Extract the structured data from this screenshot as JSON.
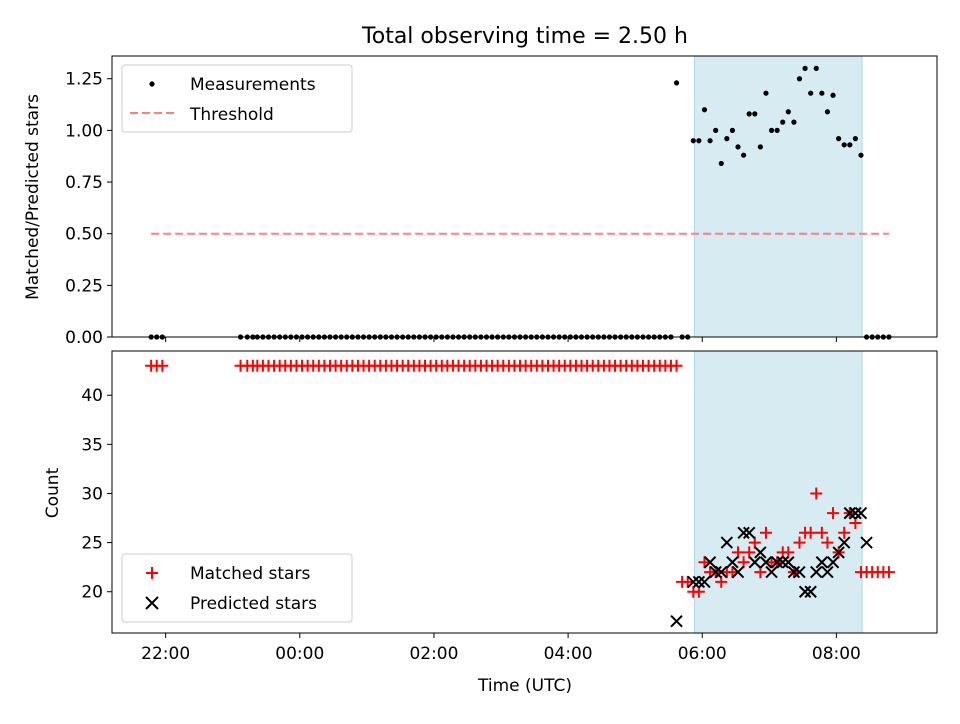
{
  "chart_data": [
    {
      "type": "scatter",
      "panel": "top",
      "title": "Total observing time = 2.50 h",
      "ylabel": "Matched/Predicted stars",
      "ylim": [
        0,
        1.36
      ],
      "yticks": [
        "0.00",
        "0.25",
        "0.50",
        "0.75",
        "1.00",
        "1.25"
      ],
      "xlim": [
        "21:12",
        "09:30"
      ],
      "xticks": [
        "22:00",
        "00:00",
        "02:00",
        "04:00",
        "06:00",
        "08:00"
      ],
      "legend": "top-left",
      "shaded_interval": [
        "05:53",
        "08:23"
      ],
      "colors": {
        "measurements": "#000000",
        "threshold": "#ff7f7f",
        "shade": "#add8e6"
      },
      "series": [
        {
          "name": "Measurements",
          "x": [
            "21:47",
            "21:52",
            "21:57",
            "23:07",
            "23:13",
            "23:18",
            "23:22",
            "23:27",
            "23:32",
            "23:37",
            "23:42",
            "23:47",
            "23:52",
            "23:57",
            "00:02",
            "00:07",
            "00:12",
            "00:17",
            "00:22",
            "00:27",
            "00:32",
            "00:37",
            "00:42",
            "00:47",
            "00:52",
            "00:57",
            "01:02",
            "01:07",
            "01:12",
            "01:17",
            "01:22",
            "01:27",
            "01:32",
            "01:37",
            "01:42",
            "01:47",
            "01:52",
            "01:57",
            "02:02",
            "02:07",
            "02:12",
            "02:17",
            "02:22",
            "02:27",
            "02:32",
            "02:37",
            "02:42",
            "02:47",
            "02:52",
            "02:57",
            "03:02",
            "03:07",
            "03:12",
            "03:17",
            "03:22",
            "03:27",
            "03:32",
            "03:37",
            "03:42",
            "03:47",
            "03:52",
            "03:57",
            "04:02",
            "04:07",
            "04:12",
            "04:17",
            "04:22",
            "04:27",
            "04:32",
            "04:37",
            "04:42",
            "04:47",
            "04:52",
            "04:57",
            "05:02",
            "05:07",
            "05:12",
            "05:17",
            "05:22",
            "05:27",
            "05:32",
            "05:37",
            "05:42",
            "05:47",
            "05:52",
            "05:57",
            "06:02",
            "06:07",
            "06:12",
            "06:17",
            "06:22",
            "06:27",
            "06:32",
            "06:37",
            "06:42",
            "06:47",
            "06:52",
            "06:57",
            "07:02",
            "07:07",
            "07:12",
            "07:17",
            "07:22",
            "07:27",
            "07:32",
            "07:37",
            "07:42",
            "07:47",
            "07:52",
            "07:57",
            "08:02",
            "08:07",
            "08:12",
            "08:17",
            "08:22",
            "08:27",
            "08:32",
            "08:37",
            "08:42",
            "08:47"
          ],
          "y": [
            0,
            0,
            0,
            0,
            0,
            0,
            0,
            0,
            0,
            0,
            0,
            0,
            0,
            0,
            0,
            0,
            0,
            0,
            0,
            0,
            0,
            0,
            0,
            0,
            0,
            0,
            0,
            0,
            0,
            0,
            0,
            0,
            0,
            0,
            0,
            0,
            0,
            0,
            0,
            0,
            0,
            0,
            0,
            0,
            0,
            0,
            0,
            0,
            0,
            0,
            0,
            0,
            0,
            0,
            0,
            0,
            0,
            0,
            0,
            0,
            0,
            0,
            0,
            0,
            0,
            0,
            0,
            0,
            0,
            0,
            0,
            0,
            0,
            0,
            0,
            0,
            0,
            0,
            0,
            0,
            0,
            1.23,
            0,
            0,
            0.95,
            0.95,
            1.1,
            0.95,
            1.0,
            0.84,
            0.96,
            1.0,
            0.92,
            0.88,
            1.08,
            1.08,
            0.92,
            1.18,
            1.0,
            1.0,
            1.04,
            1.09,
            1.04,
            1.25,
            1.3,
            1.18,
            1.3,
            1.18,
            1.09,
            1.17,
            0.96,
            0.93,
            0.93,
            0.96,
            0.88,
            0,
            0,
            0,
            0,
            0
          ]
        },
        {
          "name": "Threshold",
          "x": [
            "21:47",
            "08:47"
          ],
          "y": [
            0.5,
            0.5
          ]
        }
      ]
    },
    {
      "type": "scatter",
      "panel": "bottom",
      "xlabel": "Time (UTC)",
      "ylabel": "Count",
      "ylim": [
        15.8,
        44.5
      ],
      "yticks": [
        "20",
        "25",
        "30",
        "35",
        "40"
      ],
      "xlim": [
        "21:12",
        "09:30"
      ],
      "xticks": [
        "22:00",
        "00:00",
        "02:00",
        "04:00",
        "06:00",
        "08:00"
      ],
      "legend": "bottom-left",
      "shaded_interval": [
        "05:53",
        "08:23"
      ],
      "colors": {
        "matched": "#ff0000",
        "predicted": "#000000"
      },
      "series": [
        {
          "name": "Matched stars",
          "x": [
            "21:47",
            "21:52",
            "21:57",
            "23:07",
            "23:13",
            "23:18",
            "23:22",
            "23:27",
            "23:32",
            "23:37",
            "23:42",
            "23:47",
            "23:52",
            "23:57",
            "00:02",
            "00:07",
            "00:12",
            "00:17",
            "00:22",
            "00:27",
            "00:32",
            "00:37",
            "00:42",
            "00:47",
            "00:52",
            "00:57",
            "01:02",
            "01:07",
            "01:12",
            "01:17",
            "01:22",
            "01:27",
            "01:32",
            "01:37",
            "01:42",
            "01:47",
            "01:52",
            "01:57",
            "02:02",
            "02:07",
            "02:12",
            "02:17",
            "02:22",
            "02:27",
            "02:32",
            "02:37",
            "02:42",
            "02:47",
            "02:52",
            "02:57",
            "03:02",
            "03:07",
            "03:12",
            "03:17",
            "03:22",
            "03:27",
            "03:32",
            "03:37",
            "03:42",
            "03:47",
            "03:52",
            "03:57",
            "04:02",
            "04:07",
            "04:12",
            "04:17",
            "04:22",
            "04:27",
            "04:32",
            "04:37",
            "04:42",
            "04:47",
            "04:52",
            "04:57",
            "05:02",
            "05:07",
            "05:12",
            "05:17",
            "05:22",
            "05:27",
            "05:32",
            "05:37",
            "05:42",
            "05:47",
            "05:52",
            "05:57",
            "06:02",
            "06:07",
            "06:12",
            "06:17",
            "06:22",
            "06:27",
            "06:32",
            "06:37",
            "06:42",
            "06:47",
            "06:52",
            "06:57",
            "07:02",
            "07:07",
            "07:12",
            "07:17",
            "07:22",
            "07:27",
            "07:32",
            "07:37",
            "07:42",
            "07:47",
            "07:52",
            "07:57",
            "08:02",
            "08:07",
            "08:12",
            "08:17",
            "08:22",
            "08:27",
            "08:32",
            "08:37",
            "08:42",
            "08:47"
          ],
          "y": [
            43,
            43,
            43,
            43,
            43,
            43,
            43,
            43,
            43,
            43,
            43,
            43,
            43,
            43,
            43,
            43,
            43,
            43,
            43,
            43,
            43,
            43,
            43,
            43,
            43,
            43,
            43,
            43,
            43,
            43,
            43,
            43,
            43,
            43,
            43,
            43,
            43,
            43,
            43,
            43,
            43,
            43,
            43,
            43,
            43,
            43,
            43,
            43,
            43,
            43,
            43,
            43,
            43,
            43,
            43,
            43,
            43,
            43,
            43,
            43,
            43,
            43,
            43,
            43,
            43,
            43,
            43,
            43,
            43,
            43,
            43,
            43,
            43,
            43,
            43,
            43,
            43,
            43,
            43,
            43,
            43,
            43,
            21,
            21,
            20,
            20,
            23,
            22,
            22,
            21,
            22,
            22,
            24,
            23,
            24,
            25,
            22,
            26,
            23,
            23,
            24,
            24,
            22,
            25,
            26,
            26,
            30,
            26,
            25,
            28,
            24,
            26,
            28,
            27,
            22,
            22,
            22,
            22,
            22,
            22
          ]
        },
        {
          "name": "Predicted stars",
          "x": [
            "05:37",
            "05:52",
            "05:57",
            "06:02",
            "06:07",
            "06:12",
            "06:17",
            "06:22",
            "06:27",
            "06:32",
            "06:37",
            "06:42",
            "06:47",
            "06:52",
            "06:57",
            "07:02",
            "07:07",
            "07:12",
            "07:17",
            "07:22",
            "07:27",
            "07:32",
            "07:37",
            "07:42",
            "07:47",
            "07:52",
            "07:57",
            "08:02",
            "08:07",
            "08:12",
            "08:17",
            "08:22",
            "08:27"
          ],
          "y": [
            17,
            21,
            21,
            21,
            23,
            22,
            22,
            25,
            23,
            22,
            26,
            26,
            23,
            24,
            23,
            22,
            23,
            23,
            23,
            22,
            22,
            20,
            20,
            22,
            23,
            22,
            23,
            24,
            25,
            28,
            28,
            28,
            25
          ]
        }
      ]
    }
  ]
}
